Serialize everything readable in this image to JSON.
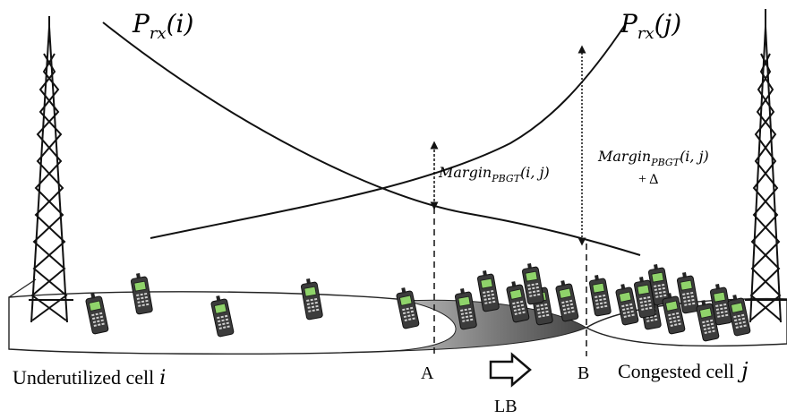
{
  "curves": {
    "left_label": {
      "symbol": "P",
      "sub": "rx",
      "arg": "(i)"
    },
    "right_label": {
      "symbol": "P",
      "sub": "rx",
      "arg": "(j)"
    }
  },
  "margins": {
    "a": {
      "name": "Margin",
      "sub": "PBGT",
      "arg": "(i, j)"
    },
    "b": {
      "name": "Margin",
      "sub": "PBGT",
      "arg": "(i, j)",
      "extra": "+ Δ"
    }
  },
  "points": {
    "a": "A",
    "b": "B"
  },
  "cells": {
    "left": {
      "text": "Underutilized cell",
      "var": "i"
    },
    "right": {
      "text": "Congested cell",
      "var": "j"
    }
  },
  "lb_label": "LB",
  "icons": [
    "tower-icon",
    "mobile-phone-icon",
    "arrow-right-icon"
  ]
}
